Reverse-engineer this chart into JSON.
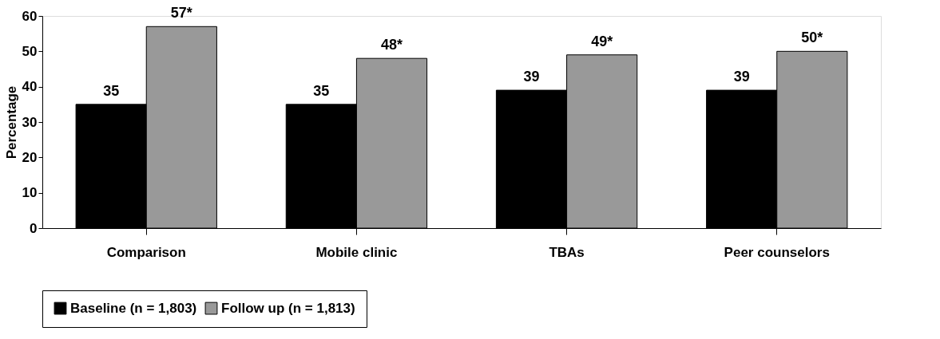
{
  "chart_data": {
    "type": "bar",
    "ylabel": "Percentage",
    "categories": [
      "Comparison",
      "Mobile clinic",
      "TBAs",
      "Peer counselors"
    ],
    "series": [
      {
        "name": "Baseline (n = 1,803)",
        "color": "#000000",
        "values": [
          35,
          35,
          39,
          39
        ],
        "value_labels": [
          "35",
          "35",
          "39",
          "39"
        ]
      },
      {
        "name": "Follow up (n = 1,813)",
        "color": "#999999",
        "values": [
          57,
          48,
          49,
          50
        ],
        "value_labels": [
          "57*",
          "48*",
          "49*",
          "50*"
        ]
      }
    ],
    "ylim": [
      0,
      60
    ],
    "yticks": [
      0,
      10,
      20,
      30,
      40,
      50,
      60
    ],
    "grid": false,
    "legend": "bottom"
  }
}
